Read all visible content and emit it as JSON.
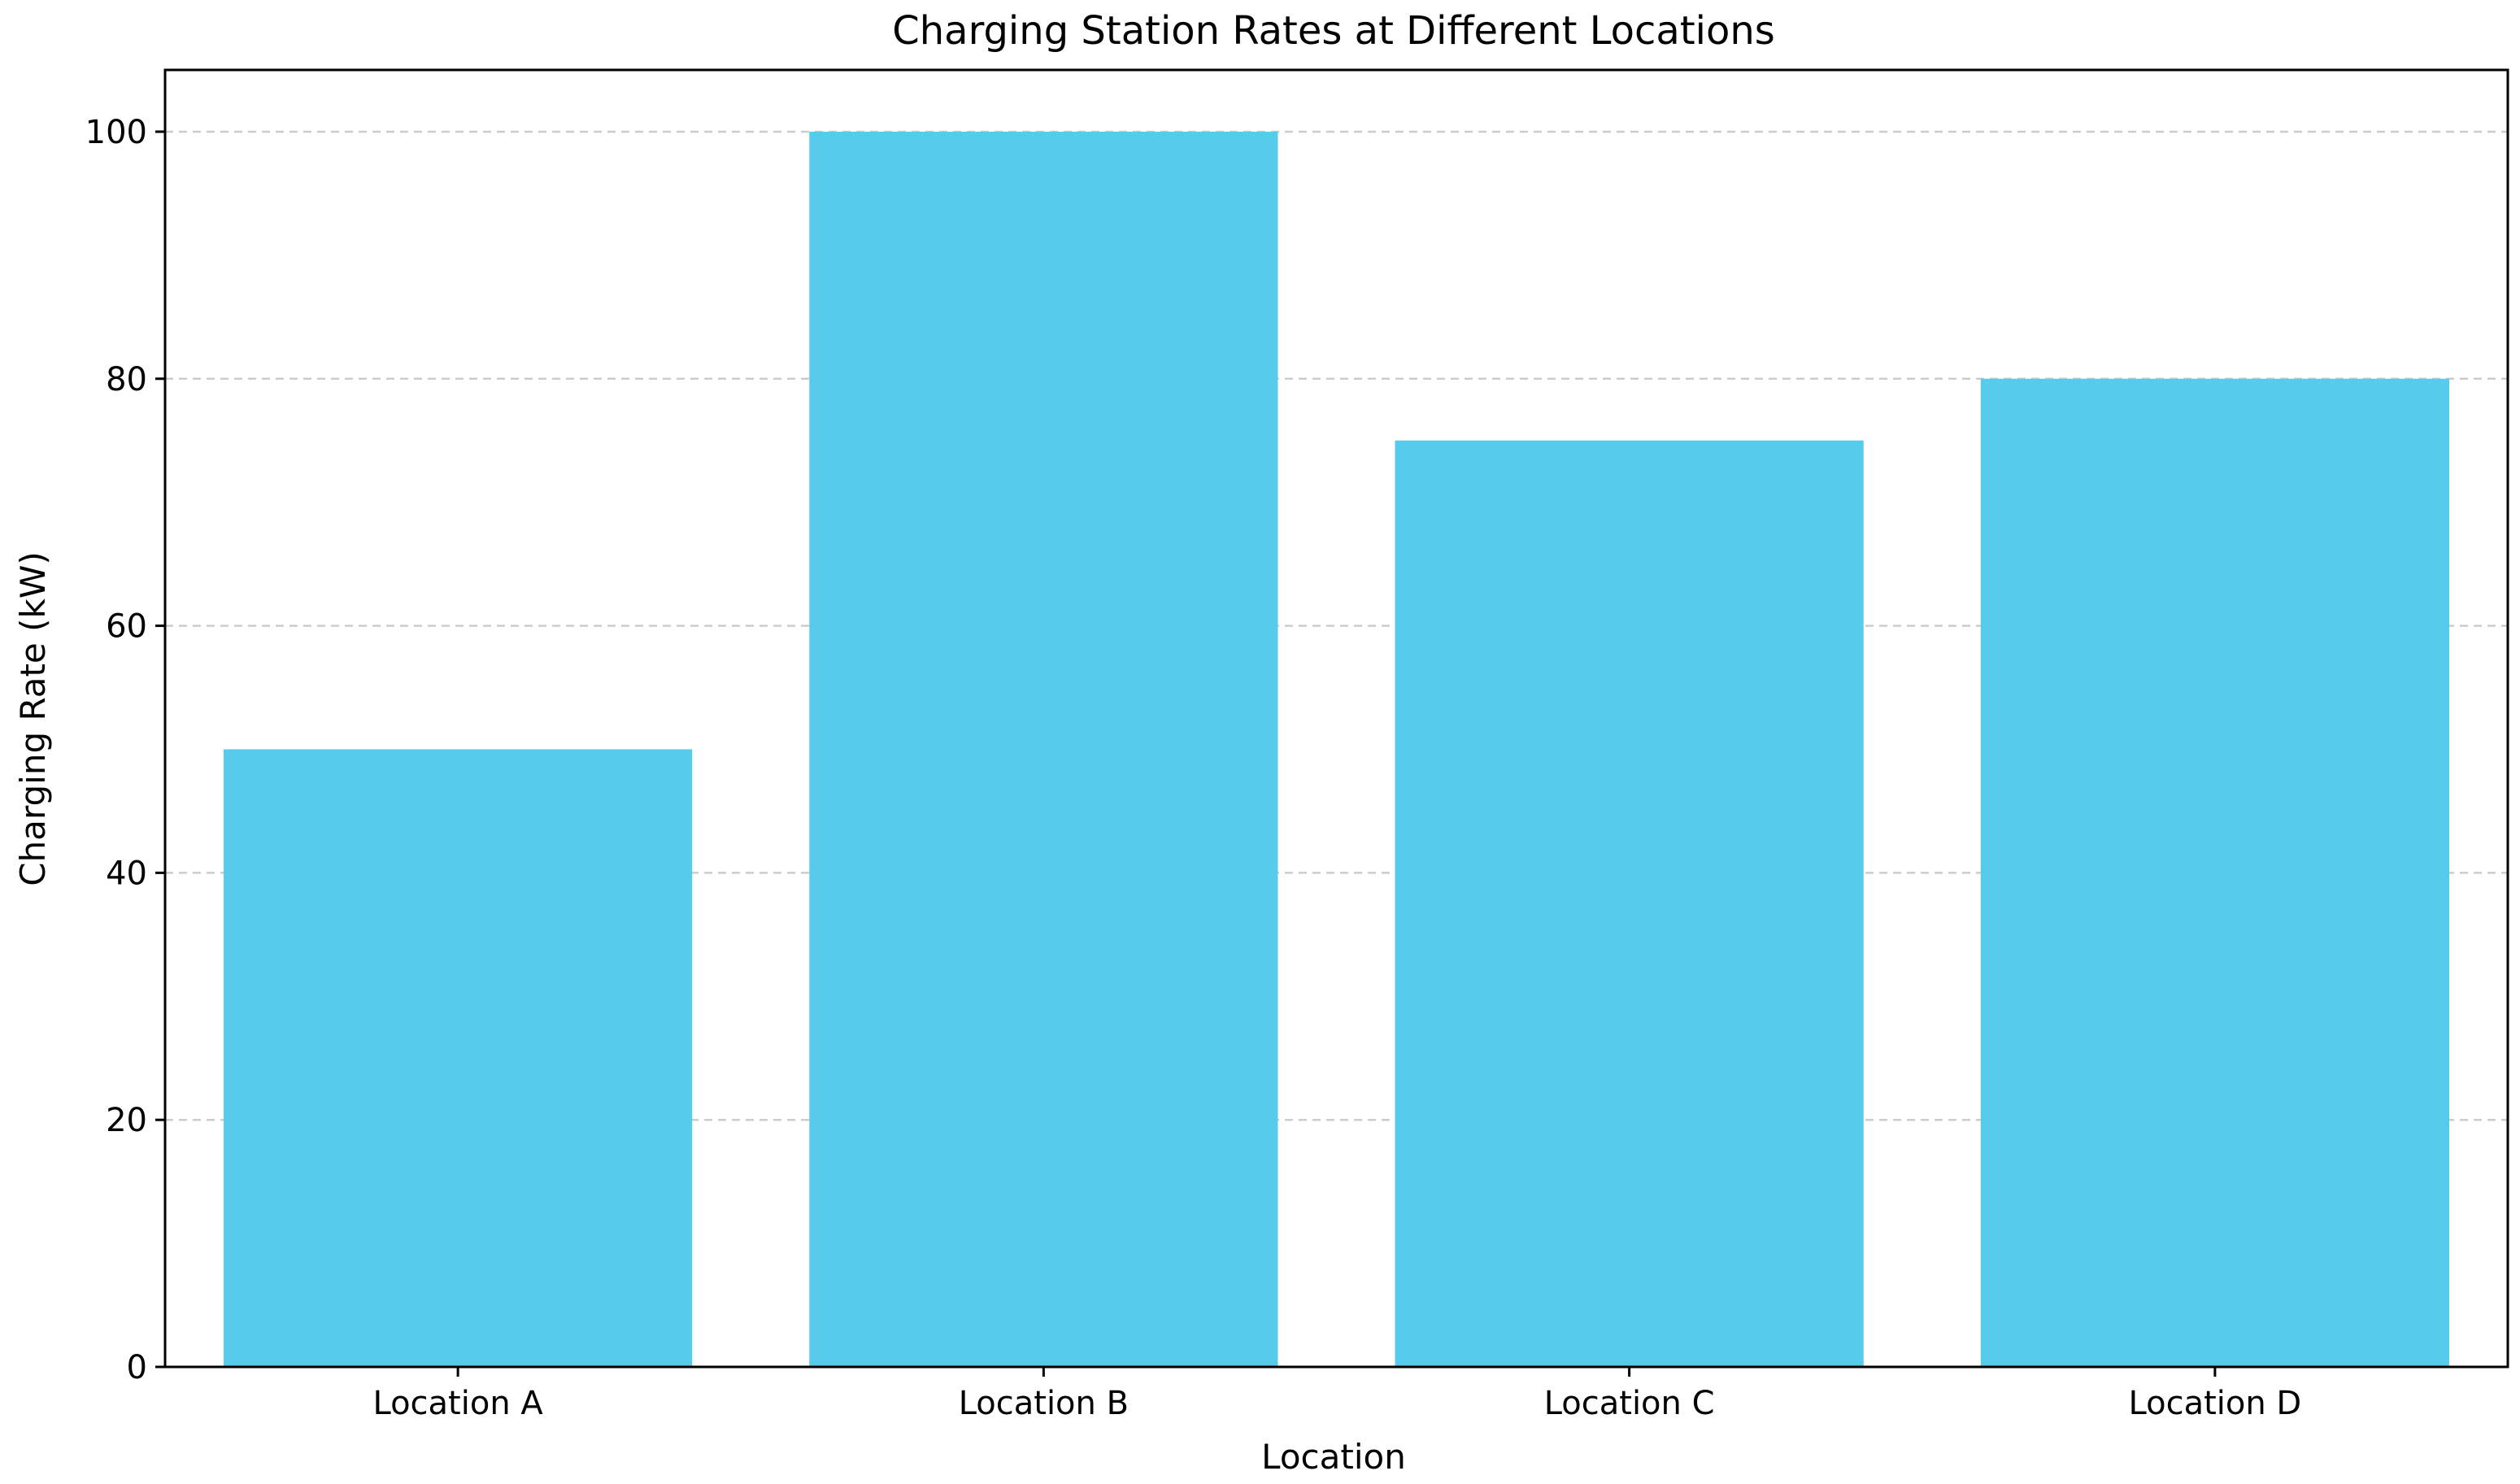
{
  "chart_data": {
    "type": "bar",
    "title": "Charging Station Rates at Different Locations",
    "xlabel": "Location",
    "ylabel": "Charging Rate (kW)",
    "categories": [
      "Location A",
      "Location B",
      "Location C",
      "Location D"
    ],
    "values": [
      50,
      100,
      75,
      80
    ],
    "ylim": [
      0,
      105
    ],
    "yticks": [
      0,
      20,
      40,
      60,
      80,
      100
    ],
    "grid": {
      "axis": "y",
      "style": "dashed",
      "color": "#cccccc"
    },
    "bar_color": "#56cbeb",
    "legend": null
  }
}
